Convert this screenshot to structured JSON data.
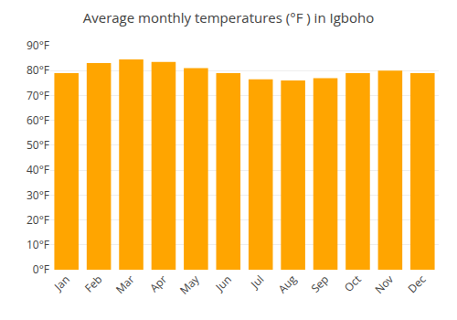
{
  "chart_data": {
    "type": "bar",
    "title": "Average monthly temperatures (°F ) in Igboho",
    "categories": [
      "Jan",
      "Feb",
      "Mar",
      "Apr",
      "May",
      "Jun",
      "Jul",
      "Aug",
      "Sep",
      "Oct",
      "Nov",
      "Dec"
    ],
    "values": [
      79,
      83,
      84.5,
      83.5,
      81,
      79,
      76.5,
      76,
      77,
      79,
      80,
      79
    ],
    "color": "#FFA500",
    "ylim": [
      0,
      90
    ],
    "yticks": [
      {
        "value": 0,
        "label": "0°F"
      },
      {
        "value": 10,
        "label": "10°F"
      },
      {
        "value": 20,
        "label": "20°F"
      },
      {
        "value": 30,
        "label": "30°F"
      },
      {
        "value": 40,
        "label": "40°F"
      },
      {
        "value": 50,
        "label": "50°F"
      },
      {
        "value": 60,
        "label": "60°F"
      },
      {
        "value": 70,
        "label": "70°F"
      },
      {
        "value": 80,
        "label": "80°F"
      },
      {
        "value": 90,
        "label": "90°F"
      }
    ],
    "grid": true
  }
}
